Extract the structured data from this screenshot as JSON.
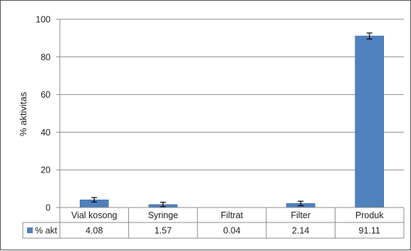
{
  "chart_data": {
    "type": "bar",
    "title": "",
    "xlabel": "",
    "ylabel": "% aktivitas",
    "categories": [
      "Vial kosong",
      "Syringe",
      "Filtrat",
      "Filter",
      "Produk"
    ],
    "series": [
      {
        "name": "% akt",
        "values": [
          4.08,
          1.57,
          0.04,
          2.14,
          91.11
        ],
        "value_labels": [
          "4.08",
          "1.57",
          "0.04",
          "2.14",
          "91.11"
        ],
        "error": [
          1.2,
          1.2,
          0.0,
          1.2,
          1.6
        ],
        "color": "#4f81bd"
      }
    ],
    "ylim": [
      0,
      100
    ],
    "yticks": [
      "0",
      "20",
      "40",
      "60",
      "80",
      "100"
    ],
    "grid": true,
    "legend": "data-table",
    "colors": {
      "bar": "#4f81bd",
      "grid": "#8c8c8c",
      "axis": "#8c8c8c",
      "frame": "#555555"
    }
  }
}
